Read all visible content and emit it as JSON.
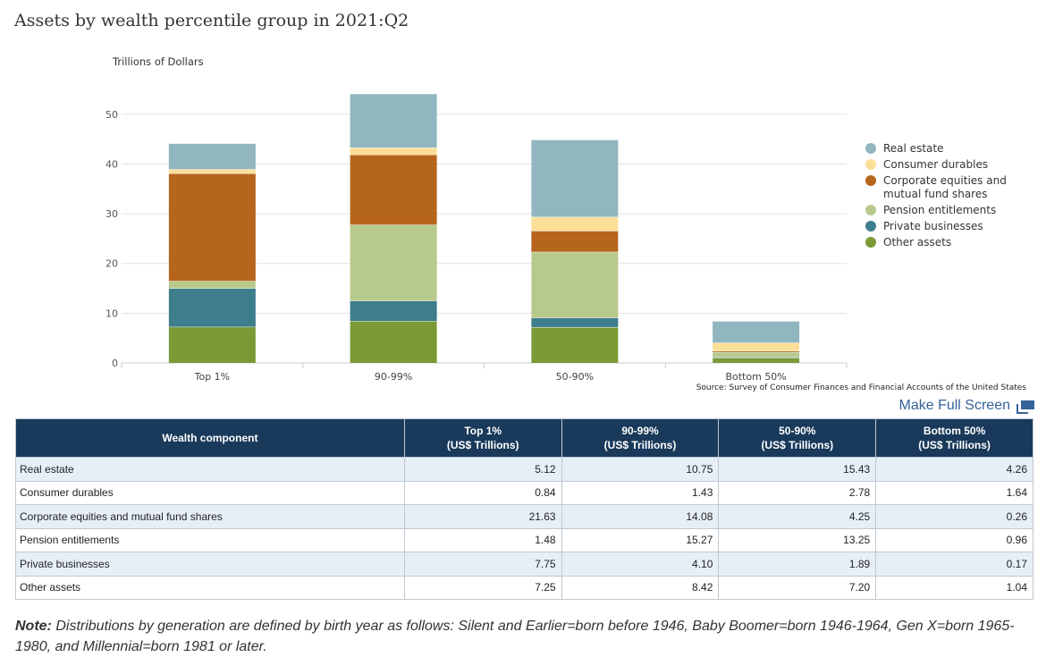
{
  "title": "Assets by wealth percentile group in 2021:Q2",
  "source": "Source: Survey of Consumer Finances and Financial Accounts of the United States",
  "fullscreen_label": "Make Full Screen",
  "chart_data": {
    "type": "bar",
    "stacked": true,
    "ylabel": "Trillions of Dollars",
    "ylim": [
      0,
      55
    ],
    "yticks": [
      0,
      10,
      20,
      30,
      40,
      50
    ],
    "grid": true,
    "legend_position": "right",
    "categories": [
      "Top 1%",
      "90-99%",
      "50-90%",
      "Bottom 50%"
    ],
    "series": [
      {
        "name": "Other assets",
        "color": "#7b9a35",
        "values": [
          7.25,
          8.42,
          7.2,
          1.04
        ]
      },
      {
        "name": "Private businesses",
        "color": "#3e7d8c",
        "values": [
          7.75,
          4.1,
          1.89,
          0.17
        ]
      },
      {
        "name": "Pension entitlements",
        "color": "#b8c98c",
        "values": [
          1.48,
          15.27,
          13.25,
          0.96
        ]
      },
      {
        "name": "Corporate equities and mutual fund shares",
        "color": "#b5651d",
        "values": [
          21.63,
          14.08,
          4.25,
          0.26
        ]
      },
      {
        "name": "Consumer durables",
        "color": "#fcdf97",
        "values": [
          0.84,
          1.43,
          2.78,
          1.64
        ]
      },
      {
        "name": "Real estate",
        "color": "#91b6bf",
        "values": [
          5.12,
          10.75,
          15.43,
          4.26
        ]
      }
    ],
    "legend_order": [
      "Real estate",
      "Consumer durables",
      "Corporate equities and mutual fund shares",
      "Pension entitlements",
      "Private businesses",
      "Other assets"
    ]
  },
  "table": {
    "headers": [
      {
        "line1": "Wealth component",
        "line2": ""
      },
      {
        "line1": "Top 1%",
        "line2": "(US$ Trillions)"
      },
      {
        "line1": "90-99%",
        "line2": "(US$ Trillions)"
      },
      {
        "line1": "50-90%",
        "line2": "(US$ Trillions)"
      },
      {
        "line1": "Bottom 50%",
        "line2": "(US$ Trillions)"
      }
    ],
    "rows": [
      [
        "Real estate",
        "5.12",
        "10.75",
        "15.43",
        "4.26"
      ],
      [
        "Consumer durables",
        "0.84",
        "1.43",
        "2.78",
        "1.64"
      ],
      [
        "Corporate equities and mutual fund shares",
        "21.63",
        "14.08",
        "4.25",
        "0.26"
      ],
      [
        "Pension entitlements",
        "1.48",
        "15.27",
        "13.25",
        "0.96"
      ],
      [
        "Private businesses",
        "7.75",
        "4.10",
        "1.89",
        "0.17"
      ],
      [
        "Other assets",
        "7.25",
        "8.42",
        "7.20",
        "1.04"
      ]
    ]
  },
  "note": {
    "label": "Note:",
    "text": " Distributions by generation are defined by birth year as follows: Silent and Earlier=born before 1946, Baby Boomer=born 1946-1964, Gen X=born 1965-1980, and Millennial=born 1981 or later."
  }
}
